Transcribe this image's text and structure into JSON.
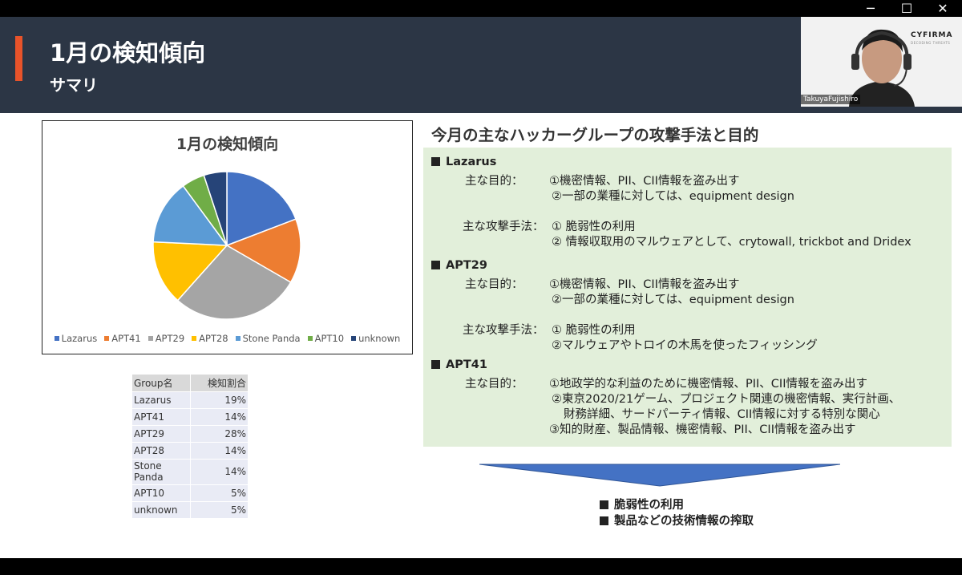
{
  "window": {
    "minimize_glyph": "─",
    "maximize_glyph": "☐",
    "close_glyph": "✕"
  },
  "header": {
    "title": "1月の検知傾向",
    "subtitle": "サマリ",
    "accent_color": "#e8532a",
    "background_color": "#2c3645"
  },
  "video": {
    "logo": "CYFIRMA",
    "logo_sub": "DECODING THREATS",
    "participant_name": "TakuyaFujishiro"
  },
  "chart_data": {
    "type": "pie",
    "title": "1月の検知傾向",
    "categories": [
      "Lazarus",
      "APT41",
      "APT29",
      "APT28",
      "Stone Panda",
      "APT10",
      "unknown"
    ],
    "values": [
      19,
      14,
      28,
      14,
      14,
      5,
      5
    ],
    "colors": [
      "#4472c4",
      "#ed7d31",
      "#a5a5a5",
      "#ffc000",
      "#5b9bd5",
      "#70ad47",
      "#264478"
    ],
    "legend_position": "bottom"
  },
  "table": {
    "headers": [
      "Group名",
      "検知割合"
    ],
    "rows": [
      [
        "Lazarus",
        "19%"
      ],
      [
        "APT41",
        "14%"
      ],
      [
        "APT29",
        "28%"
      ],
      [
        "APT28",
        "14%"
      ],
      [
        "Stone Panda",
        "14%"
      ],
      [
        "APT10",
        "5%"
      ],
      [
        "unknown",
        "5%"
      ]
    ]
  },
  "panel": {
    "title": "今月の主なハッカーグループの攻撃手法と目的",
    "lines": [
      "Lazarus",
      "主な目的：",
      "①機密情報、PII、CII情報を盗み出す",
      "②一部の業種に対しては、equipment design",
      "主な攻撃手法：",
      "① 脆弱性の利用",
      "② 情報収取用のマルウェアとして、crytowall, trickbot and Dridex",
      "APT29",
      "主な目的：",
      "①機密情報、PII、CII情報を盗み出す",
      "②一部の業種に対しては、equipment design",
      "主な攻撃手法：",
      "① 脆弱性の利用",
      "②マルウェアやトロイの木馬を使ったフィッシング",
      "APT41",
      "主な目的：",
      "①地政学的な利益のために機密情報、PII、CII情報を盗み出す",
      "②東京2020/21ゲーム、プロジェクト関連の機密情報、実行計画、",
      "財務詳細、サードパーティ情報、CII情報に対する特別な関心",
      "③知的財産、製品情報、機密情報、PII、CII情報を盗み出す"
    ]
  },
  "summary": {
    "bullets": [
      "脆弱性の利用",
      "製品などの技術情報の搾取"
    ]
  }
}
